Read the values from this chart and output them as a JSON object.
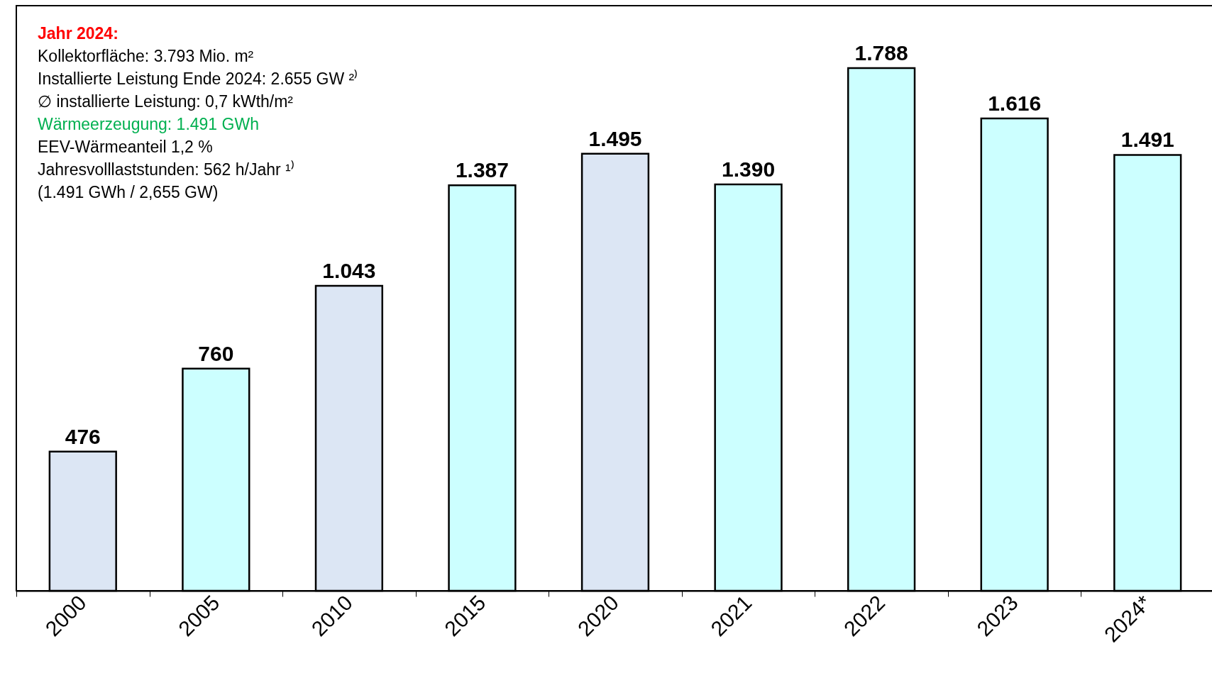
{
  "chart_data": {
    "type": "bar",
    "categories": [
      "2000",
      "2005",
      "2010",
      "2015",
      "2020",
      "2021",
      "2022",
      "2023",
      "2024*"
    ],
    "values": [
      476,
      760,
      1043,
      1387,
      1495,
      1390,
      1788,
      1616,
      1491
    ],
    "colors": [
      "#dce6f4",
      "#ccffff",
      "#dce6f4",
      "#ccffff",
      "#dce6f4",
      "#ccffff",
      "#ccffff",
      "#ccffff",
      "#ccffff"
    ],
    "value_labels": [
      "476",
      "760",
      "1.043",
      "1.387",
      "1.495",
      "1.390",
      "1.788",
      "1.616",
      "1.491"
    ],
    "annotations": [
      "Jahr 2024:",
      "Kollektorfläche: 3.793 Mio. m²",
      "Installierte Leistung Ende 2024: 2.655 GW ²⁾",
      "∅ installierte Leistung: 0,7 kWth/m²",
      "Wärmeerzeugung: 1.491 GWh",
      "EEV-Wärmeanteil 1,2 %",
      "Jahresvolllaststunden: 562 h/Jahr ¹⁾",
      "(1.491 GWh / 2,655 GW)"
    ]
  }
}
